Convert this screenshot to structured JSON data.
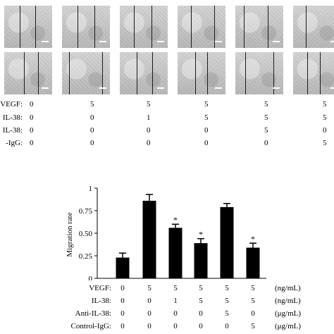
{
  "micrographs": {
    "row_count": 2,
    "column_count": 6
  },
  "top_table": {
    "rows": [
      {
        "label": "VEGF:",
        "values": [
          "0",
          "5",
          "5",
          "5",
          "5",
          "5"
        ]
      },
      {
        "label": "IL-38:",
        "values": [
          "0",
          "0",
          "1",
          "5",
          "5",
          "5"
        ]
      },
      {
        "label": "IL-38:",
        "values": [
          "0",
          "0",
          "0",
          "0",
          "5",
          "0"
        ]
      },
      {
        "label": "-IgG:",
        "values": [
          "0",
          "0",
          "0",
          "0",
          "0",
          "5"
        ]
      }
    ]
  },
  "chart_data": {
    "type": "bar",
    "title": "",
    "xlabel": "",
    "ylabel": "Migration rate",
    "ylim": [
      0,
      1
    ],
    "yticks": [
      "0",
      "0.25",
      "0.50",
      "0.75",
      "1"
    ],
    "bar_color": "#000000",
    "values": [
      0.23,
      0.86,
      0.56,
      0.39,
      0.79,
      0.34
    ],
    "errors": [
      0.05,
      0.07,
      0.04,
      0.05,
      0.04,
      0.05
    ],
    "significance": [
      "",
      "",
      "*",
      "*",
      "",
      "*"
    ],
    "significance_symbol": "*"
  },
  "bottom_table": {
    "rows": [
      {
        "label": "VEGF:",
        "values": [
          "0",
          "5",
          "5",
          "5",
          "5",
          "5"
        ],
        "unit": "(ng/mL)"
      },
      {
        "label": "IL-38:",
        "values": [
          "0",
          "0",
          "1",
          "5",
          "5",
          "5"
        ],
        "unit": "(ng/mL)"
      },
      {
        "label": "Anti-IL-38:",
        "values": [
          "0",
          "0",
          "0",
          "0",
          "5",
          "0"
        ],
        "unit": "(μg/mL)"
      },
      {
        "label": "Control-IgG:",
        "values": [
          "0",
          "0",
          "0",
          "0",
          "0",
          "5"
        ],
        "unit": "(μg/mL)"
      }
    ]
  }
}
